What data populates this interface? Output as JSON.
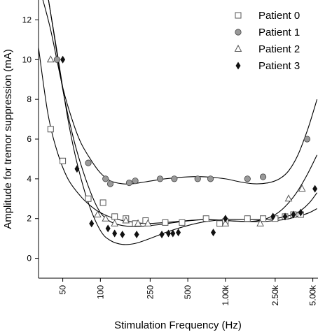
{
  "chart_data": {
    "type": "scatter",
    "xlabel": "Stimulation Frequency (Hz)",
    "ylabel": "Amplitude for tremor suppression (mA)",
    "x_scale": "log",
    "xlim": [
      32,
      5500
    ],
    "ylim": [
      -1,
      13
    ],
    "x_ticks": [
      {
        "value": 50,
        "label": "50"
      },
      {
        "value": 100,
        "label": "100"
      },
      {
        "value": 250,
        "label": "250"
      },
      {
        "value": 500,
        "label": "500"
      },
      {
        "value": 1000,
        "label": "1.00k"
      },
      {
        "value": 2500,
        "label": "2.50k"
      },
      {
        "value": 5000,
        "label": "5.00k"
      }
    ],
    "y_ticks": [
      {
        "value": 0,
        "label": "0"
      },
      {
        "value": 2,
        "label": "2"
      },
      {
        "value": 4,
        "label": "4"
      },
      {
        "value": 6,
        "label": "6"
      },
      {
        "value": 8,
        "label": "8"
      },
      {
        "value": 10,
        "label": "10"
      },
      {
        "value": 12,
        "label": "12"
      }
    ],
    "grid": false,
    "legend_position": "top-right",
    "series": [
      {
        "name": "Patient 0",
        "marker": "square-open",
        "color": "#555555",
        "x": [
          40,
          50,
          80,
          105,
          130,
          160,
          190,
          230,
          330,
          450,
          700,
          900,
          1000,
          1500,
          2000,
          2500,
          3000,
          3500,
          4000
        ],
        "y": [
          6.5,
          4.9,
          3.0,
          2.8,
          2.1,
          2.0,
          1.75,
          1.9,
          1.8,
          1.8,
          2.0,
          1.75,
          1.85,
          2.0,
          2.0,
          2.0,
          2.1,
          2.2,
          2.2
        ],
        "curve": [
          [
            32,
            10.6
          ],
          [
            38,
            7.3
          ],
          [
            45,
            5.4
          ],
          [
            55,
            4.0
          ],
          [
            70,
            3.1
          ],
          [
            85,
            2.6
          ],
          [
            100,
            2.3
          ],
          [
            130,
            2.0
          ],
          [
            170,
            1.85
          ],
          [
            230,
            1.75
          ],
          [
            330,
            1.8
          ],
          [
            500,
            1.9
          ],
          [
            700,
            1.95
          ],
          [
            1000,
            1.9
          ],
          [
            1500,
            1.85
          ],
          [
            2000,
            1.85
          ],
          [
            2500,
            1.9
          ],
          [
            3000,
            1.95
          ],
          [
            3500,
            2.05
          ],
          [
            4000,
            2.15
          ],
          [
            4700,
            2.3
          ],
          [
            5400,
            2.5
          ]
        ]
      },
      {
        "name": "Patient 1",
        "marker": "circle-filled",
        "color": "#999999",
        "x": [
          45,
          80,
          110,
          120,
          170,
          190,
          300,
          390,
          600,
          760,
          1500,
          2000,
          4500
        ],
        "y": [
          10.0,
          4.8,
          4.0,
          3.75,
          3.8,
          3.9,
          4.0,
          4.0,
          4.0,
          4.0,
          4.0,
          4.1,
          6.0
        ],
        "curve": [
          [
            34,
            13.2
          ],
          [
            40,
            11.5
          ],
          [
            50,
            8.6
          ],
          [
            60,
            6.9
          ],
          [
            70,
            5.8
          ],
          [
            85,
            4.9
          ],
          [
            100,
            4.3
          ],
          [
            120,
            3.9
          ],
          [
            150,
            3.75
          ],
          [
            180,
            3.75
          ],
          [
            230,
            3.85
          ],
          [
            330,
            4.0
          ],
          [
            500,
            4.1
          ],
          [
            700,
            4.1
          ],
          [
            1000,
            4.0
          ],
          [
            1300,
            3.85
          ],
          [
            1700,
            3.75
          ],
          [
            2200,
            3.8
          ],
          [
            2700,
            4.0
          ],
          [
            3200,
            4.4
          ],
          [
            3800,
            5.2
          ],
          [
            4500,
            6.4
          ],
          [
            5000,
            7.3
          ],
          [
            5400,
            8.0
          ]
        ]
      },
      {
        "name": "Patient 2",
        "marker": "triangle-open",
        "color": "#555555",
        "x": [
          40,
          95,
          110,
          130,
          160,
          200,
          240,
          1000,
          1900,
          3200,
          4100
        ],
        "y": [
          10.0,
          2.2,
          2.0,
          1.75,
          1.9,
          1.75,
          1.75,
          1.75,
          1.75,
          3.0,
          3.5
        ],
        "curve": [
          [
            38,
            13.2
          ],
          [
            42,
            11.5
          ],
          [
            50,
            8.5
          ],
          [
            60,
            6.2
          ],
          [
            70,
            4.7
          ],
          [
            85,
            3.2
          ],
          [
            100,
            2.3
          ],
          [
            120,
            1.85
          ],
          [
            150,
            1.65
          ],
          [
            200,
            1.6
          ],
          [
            300,
            1.7
          ],
          [
            450,
            1.85
          ],
          [
            700,
            1.95
          ],
          [
            1000,
            1.9
          ],
          [
            1500,
            1.85
          ],
          [
            2000,
            1.95
          ],
          [
            2500,
            2.2
          ],
          [
            3000,
            2.6
          ],
          [
            3700,
            3.3
          ],
          [
            4500,
            4.2
          ],
          [
            5400,
            5.2
          ]
        ]
      },
      {
        "name": "Patient 3",
        "marker": "diamond-filled",
        "color": "#111111",
        "x": [
          50,
          65,
          85,
          115,
          130,
          150,
          195,
          310,
          350,
          380,
          420,
          800,
          1000,
          2400,
          3000,
          3500,
          4000,
          5200
        ],
        "y": [
          10.0,
          4.5,
          1.75,
          1.5,
          1.25,
          1.2,
          1.2,
          1.2,
          1.25,
          1.25,
          1.3,
          1.3,
          2.0,
          2.1,
          2.1,
          2.2,
          2.3,
          3.5
        ],
        "curve": [
          [
            38,
            13.2
          ],
          [
            45,
            10.4
          ],
          [
            55,
            7.0
          ],
          [
            65,
            4.8
          ],
          [
            80,
            2.8
          ],
          [
            100,
            1.4
          ],
          [
            120,
            0.9
          ],
          [
            150,
            0.7
          ],
          [
            190,
            0.75
          ],
          [
            250,
            1.0
          ],
          [
            350,
            1.35
          ],
          [
            500,
            1.65
          ],
          [
            700,
            1.85
          ],
          [
            1000,
            1.95
          ],
          [
            1500,
            1.95
          ],
          [
            2000,
            1.95
          ],
          [
            2500,
            2.0
          ],
          [
            3000,
            2.1
          ],
          [
            3500,
            2.2
          ],
          [
            4000,
            2.4
          ],
          [
            4700,
            2.8
          ],
          [
            5400,
            3.3
          ]
        ]
      }
    ]
  }
}
